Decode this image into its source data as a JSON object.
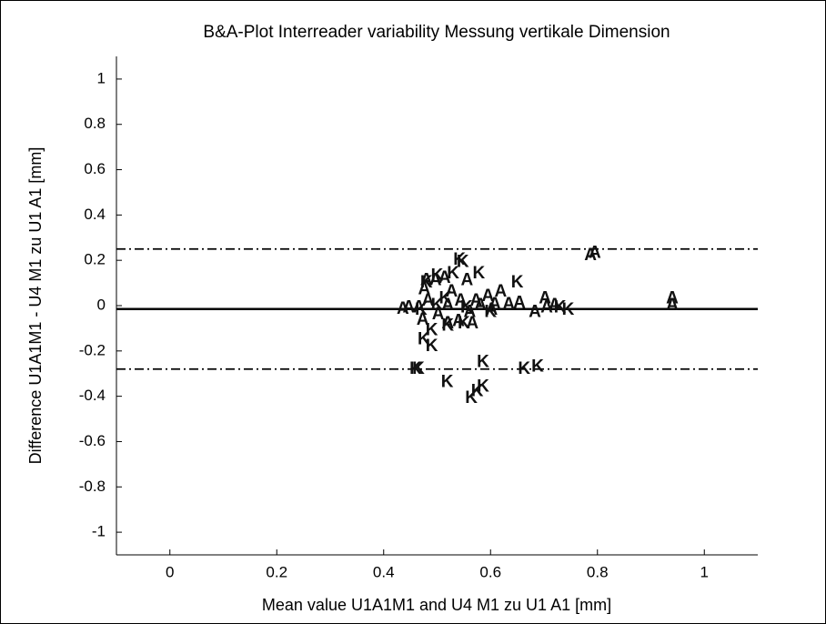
{
  "chart_data": {
    "type": "scatter",
    "title": "B&A-Plot Interreader variability Messung vertikale Dimension",
    "x_label": "Mean value U1A1M1 and U4 M1 zu U1 A1 [mm]",
    "y_label": "Difference U1A1M1 - U4 M1 zu U1 A1 [mm]",
    "xlim": [
      -0.1,
      1.1
    ],
    "ylim": [
      -1.1,
      1.1
    ],
    "xticks": [
      0,
      0.2,
      0.4,
      0.6,
      0.8,
      1
    ],
    "yticks": [
      1,
      0.8,
      0.6,
      0.4,
      0.2,
      0,
      -0.2,
      -0.4,
      -0.6,
      -0.8,
      -1
    ],
    "mean_line": -0.015,
    "upper_limit": 0.25,
    "lower_limit": -0.28,
    "color": "#111111",
    "series": [
      {
        "marker": "A",
        "x": [
          0.436,
          0.447,
          0.466,
          0.476,
          0.48,
          0.473,
          0.483,
          0.497,
          0.502,
          0.514,
          0.52,
          0.527,
          0.544,
          0.556,
          0.561,
          0.573,
          0.581,
          0.595,
          0.602,
          0.608,
          0.619,
          0.634,
          0.654,
          0.683,
          0.702,
          0.787,
          0.795,
          0.94,
          0.94,
          0.72,
          0.705,
          0.52,
          0.54,
          0.566
        ],
        "values": [
          -0.015,
          -0.01,
          -0.01,
          0.07,
          0.11,
          -0.065,
          0.02,
          0.11,
          -0.04,
          0.12,
          0,
          0.06,
          0.02,
          0.11,
          -0.03,
          0.02,
          0,
          0.04,
          -0.02,
          0.005,
          0.06,
          0.005,
          0.01,
          -0.03,
          0.03,
          0.22,
          0.23,
          0.03,
          0,
          0,
          -0.01,
          -0.08,
          -0.07,
          -0.08
        ]
      },
      {
        "marker": "K",
        "x": [
          0.475,
          0.49,
          0.465,
          0.46,
          0.519,
          0.586,
          0.586,
          0.575,
          0.564,
          0.663,
          0.688,
          0.49,
          0.52,
          0.55,
          0.53,
          0.542,
          0.548,
          0.578,
          0.65,
          0.5,
          0.48,
          0.515,
          0.555,
          0.6,
          0.745,
          0.73,
          0.5,
          0.47
        ],
        "values": [
          -0.15,
          -0.18,
          -0.28,
          -0.28,
          -0.34,
          -0.25,
          -0.36,
          -0.38,
          -0.41,
          -0.28,
          -0.27,
          -0.11,
          -0.09,
          -0.08,
          0.14,
          0.2,
          0.19,
          0.14,
          0.1,
          0.13,
          0.1,
          0.03,
          -0.01,
          -0.03,
          -0.02,
          -0.01,
          0,
          -0.02
        ]
      }
    ]
  }
}
